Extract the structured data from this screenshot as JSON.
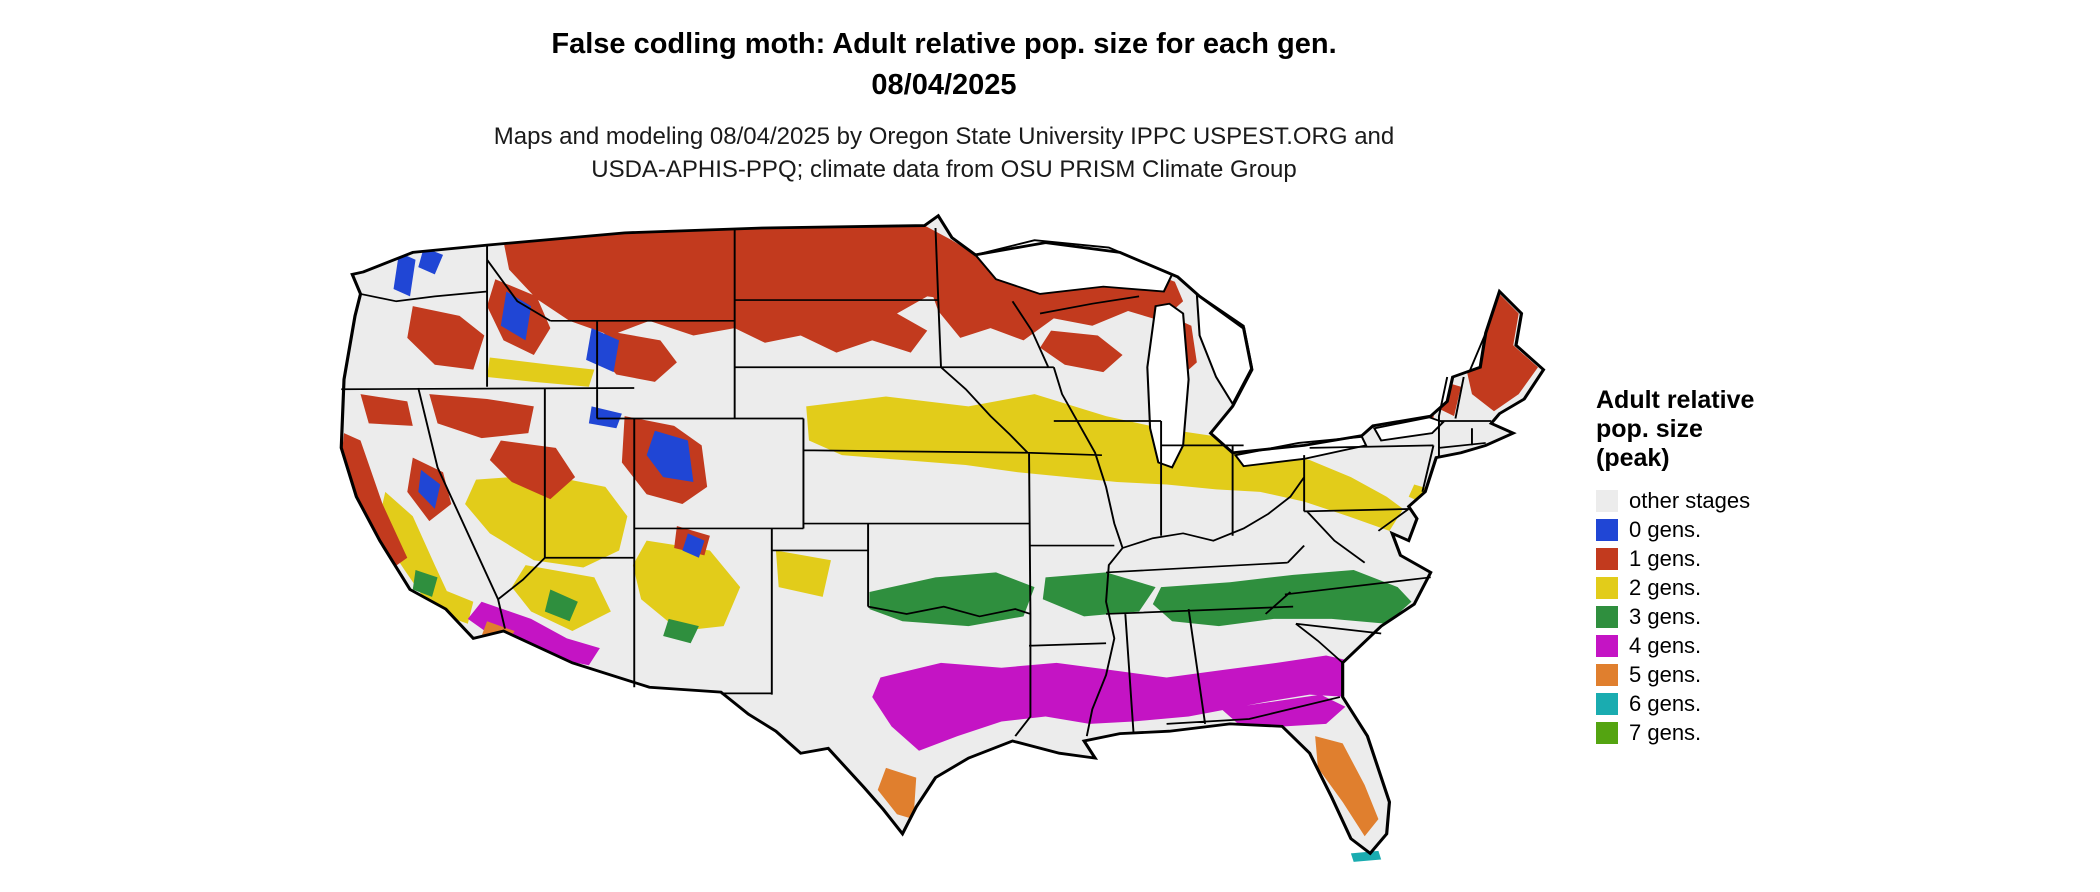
{
  "header": {
    "title_line1": "False codling moth: Adult relative pop. size for each gen.",
    "title_line2": "08/04/2025",
    "subtitle_line1": "Maps and modeling 08/04/2025 by Oregon State University IPPC USPEST.ORG and",
    "subtitle_line2": "USDA-APHIS-PPQ; climate data from OSU PRISM Climate Group"
  },
  "legend": {
    "title_line1": "Adult relative",
    "title_line2": "pop. size",
    "title_line3": "(peak)",
    "entries": [
      {
        "label": "other stages",
        "color": "#ececec",
        "key": "other"
      },
      {
        "label": "0 gens.",
        "color": "#2046d5",
        "key": "g0"
      },
      {
        "label": "1 gens.",
        "color": "#c23a1e",
        "key": "g1"
      },
      {
        "label": "2 gens.",
        "color": "#e2cc1a",
        "key": "g2"
      },
      {
        "label": "3 gens.",
        "color": "#2f8f3e",
        "key": "g3"
      },
      {
        "label": "4 gens.",
        "color": "#c414c4",
        "key": "g4"
      },
      {
        "label": "5 gens.",
        "color": "#e07f2e",
        "key": "g5"
      },
      {
        "label": "6 gens.",
        "color": "#1aacb0",
        "key": "g6"
      },
      {
        "label": "7 gens.",
        "color": "#54a411",
        "key": "g7"
      }
    ]
  },
  "map": {
    "region": "Contiguous United States",
    "base_color": "#ececec",
    "border_color": "#000000",
    "water_color": "#ffffff"
  }
}
